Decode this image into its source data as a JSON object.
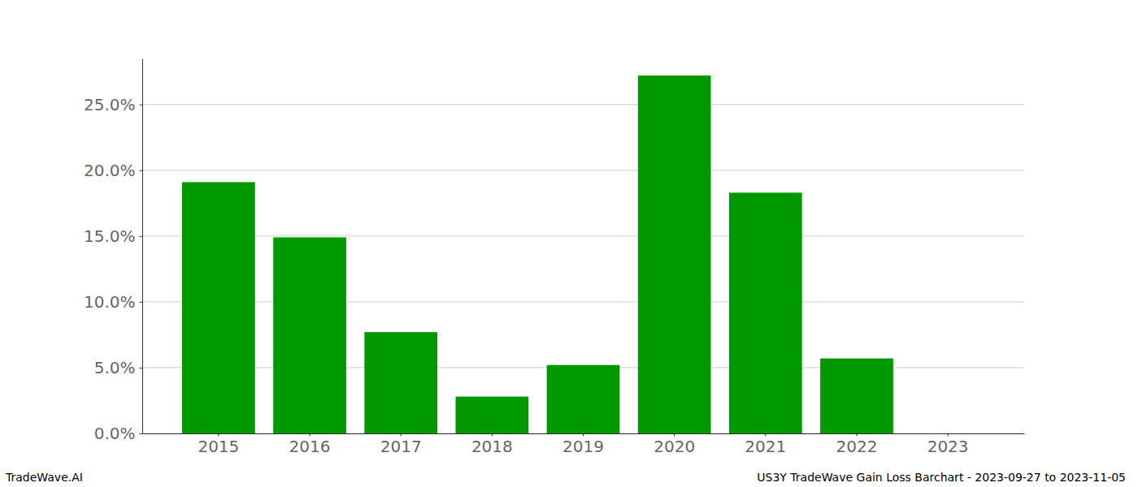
{
  "chart_data": {
    "type": "bar",
    "title": "US3Y TradeWave Gain Loss Barchart - 2023-09-27 to 2023-11-05",
    "subtitle": "TradeWave.AI",
    "categories": [
      "2015",
      "2016",
      "2017",
      "2018",
      "2019",
      "2020",
      "2021",
      "2022",
      "2023"
    ],
    "values": [
      19.1,
      14.9,
      7.7,
      2.8,
      5.2,
      27.2,
      18.3,
      5.7,
      0
    ],
    "color": "#009900",
    "ylim": [
      0,
      28.5
    ],
    "yticks": [
      {
        "value": 0,
        "label": "0.0%"
      },
      {
        "value": 5,
        "label": "5.0%"
      },
      {
        "value": 10,
        "label": "10.0%"
      },
      {
        "value": 15,
        "label": "15.0%"
      },
      {
        "value": 20,
        "label": "20.0%"
      },
      {
        "value": 25,
        "label": "25.0%"
      }
    ],
    "grid": true
  }
}
